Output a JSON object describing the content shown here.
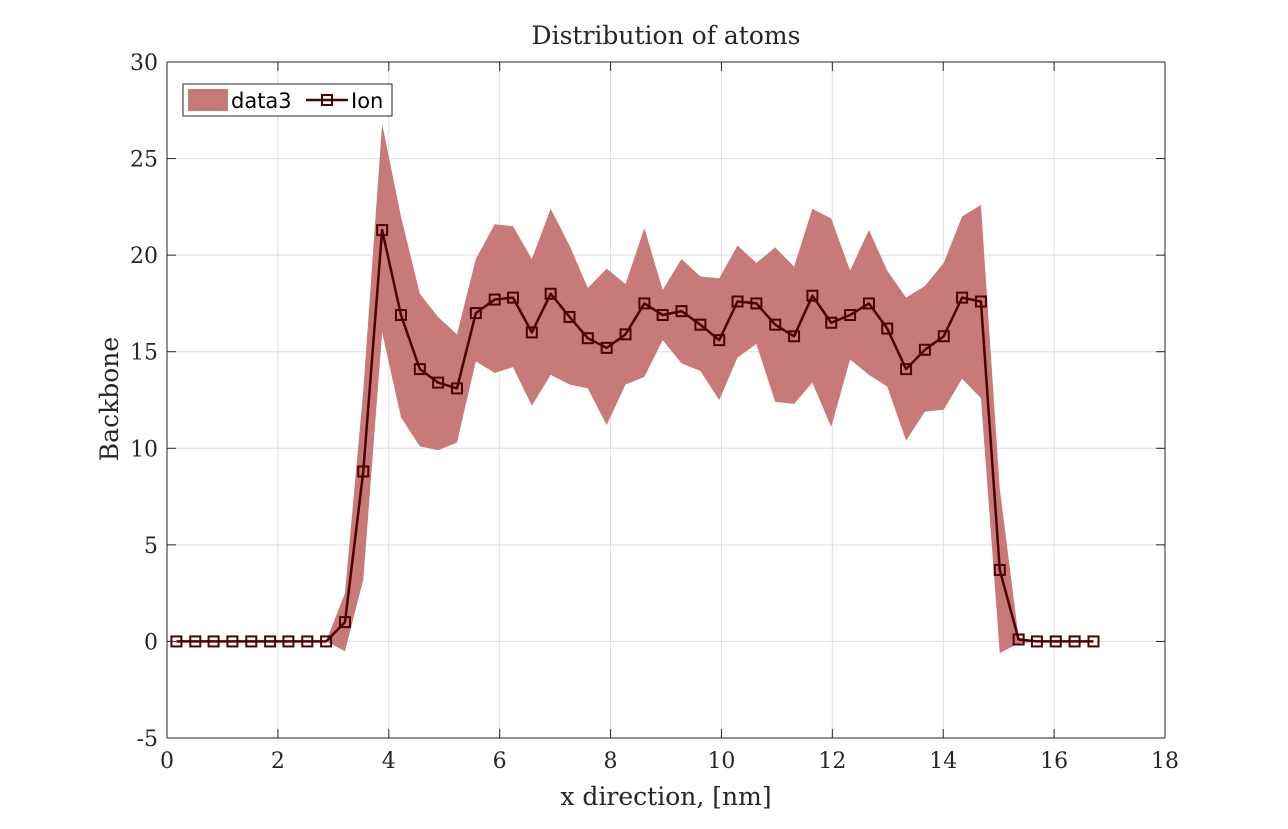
{
  "chart_data": {
    "type": "line",
    "title": "Distribution of atoms",
    "xlabel": "x direction, [nm]",
    "ylabel": "Backbone",
    "xlim": [
      0,
      18
    ],
    "ylim": [
      -5,
      30
    ],
    "xticks": [
      0,
      2,
      4,
      6,
      8,
      10,
      12,
      14,
      16,
      18
    ],
    "yticks": [
      -5,
      0,
      5,
      10,
      15,
      20,
      25,
      30
    ],
    "grid": true,
    "legend_position": "top-left",
    "x": [
      0.17,
      0.51,
      0.84,
      1.18,
      1.52,
      1.86,
      2.19,
      2.53,
      2.87,
      3.21,
      3.54,
      3.88,
      4.22,
      4.56,
      4.89,
      5.23,
      5.57,
      5.91,
      6.24,
      6.58,
      6.92,
      7.26,
      7.59,
      7.93,
      8.27,
      8.61,
      8.94,
      9.28,
      9.62,
      9.96,
      10.29,
      10.63,
      10.97,
      11.31,
      11.64,
      11.98,
      12.32,
      12.66,
      12.99,
      13.33,
      13.67,
      14.01,
      14.34,
      14.68,
      15.02,
      15.36,
      15.69,
      16.03,
      16.37,
      16.71
    ],
    "series": [
      {
        "name": "data3",
        "kind": "band",
        "color": "#c77a78",
        "upper": [
          0,
          0,
          0,
          0,
          0,
          0,
          0,
          0,
          0,
          2.5,
          13.0,
          26.8,
          22.0,
          18.0,
          16.8,
          15.9,
          19.8,
          21.6,
          21.5,
          19.8,
          22.4,
          20.5,
          18.3,
          19.3,
          18.5,
          21.4,
          18.2,
          19.8,
          18.9,
          18.8,
          20.5,
          19.6,
          20.4,
          19.4,
          22.4,
          21.9,
          19.2,
          21.3,
          19.2,
          17.8,
          18.4,
          19.6,
          22.0,
          22.6,
          7.9,
          0.2,
          0,
          0,
          0,
          0
        ],
        "lower": [
          0,
          0,
          0,
          0,
          0,
          0,
          0,
          0,
          0,
          -0.5,
          3.2,
          16.0,
          11.6,
          10.1,
          9.9,
          10.3,
          14.5,
          13.9,
          14.2,
          12.2,
          13.8,
          13.3,
          13.1,
          11.2,
          13.3,
          13.7,
          15.6,
          14.4,
          14.0,
          12.5,
          14.7,
          15.4,
          12.4,
          12.3,
          13.4,
          11.1,
          14.6,
          13.8,
          13.2,
          10.4,
          11.9,
          12.0,
          13.6,
          12.6,
          -0.6,
          -0.1,
          0,
          0,
          0,
          0
        ]
      },
      {
        "name": "Ion",
        "kind": "line",
        "color": "#4d0000",
        "marker": "square",
        "values": [
          0,
          0,
          0,
          0,
          0,
          0,
          0,
          0,
          0,
          1.0,
          8.8,
          21.3,
          16.9,
          14.1,
          13.4,
          13.1,
          17.0,
          17.7,
          17.8,
          16.0,
          18.0,
          16.8,
          15.7,
          15.2,
          15.9,
          17.5,
          16.9,
          17.1,
          16.4,
          15.6,
          17.6,
          17.5,
          16.4,
          15.8,
          17.9,
          16.5,
          16.9,
          17.5,
          16.2,
          14.1,
          15.1,
          15.8,
          17.8,
          17.6,
          3.7,
          0.1,
          0,
          0,
          0,
          0
        ]
      }
    ]
  }
}
